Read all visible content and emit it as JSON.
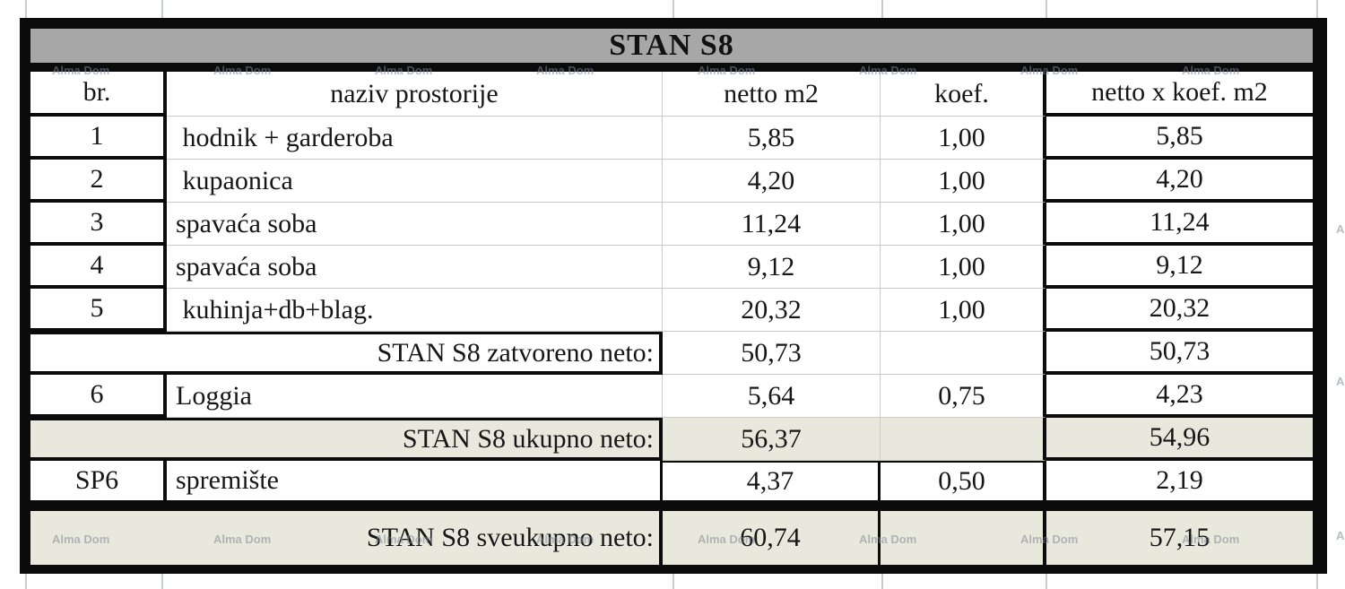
{
  "title": "STAN S8",
  "watermark": {
    "label": "Alma Dom"
  },
  "colors": {
    "title_bg": "#a7a7a7",
    "total_row_bg": "#e8e8dc",
    "border_black": "#0b0b0b",
    "grid_gray": "#c7cbd4",
    "watermark_gray": "#7f8897"
  },
  "table": {
    "headers": [
      "br.",
      "naziv prostorije",
      "netto m2",
      "koef.",
      "netto x koef. m2"
    ],
    "rows": [
      {
        "kind": "normal",
        "olive": false,
        "br": "1",
        "naziv": " hodnik + garderoba",
        "netto": "5,85",
        "koef": "1,00",
        "total": "5,85"
      },
      {
        "kind": "normal",
        "olive": false,
        "br": "2",
        "naziv": " kupaonica",
        "netto": "4,20",
        "koef": "1,00",
        "total": "4,20"
      },
      {
        "kind": "normal",
        "olive": false,
        "br": "3",
        "naziv": "spavaća soba",
        "netto": "11,24",
        "koef": "1,00",
        "total": "11,24"
      },
      {
        "kind": "normal",
        "olive": false,
        "br": "4",
        "naziv": "spavaća soba",
        "netto": "9,12",
        "koef": "1,00",
        "total": "9,12"
      },
      {
        "kind": "normal",
        "olive": false,
        "br": "5",
        "naziv": " kuhinja+db+blag.",
        "netto": "20,32",
        "koef": "1,00",
        "total": "20,32"
      },
      {
        "kind": "subtotal",
        "olive": false,
        "label": "STAN S8 zatvoreno neto:",
        "netto": "50,73",
        "koef": "",
        "total": "50,73"
      },
      {
        "kind": "normal",
        "olive": false,
        "br": "6",
        "naziv": "Loggia",
        "netto": "5,64",
        "koef": "0,75",
        "total": "4,23"
      },
      {
        "kind": "subtotal",
        "olive": true,
        "label": "STAN S8 ukupno neto:",
        "netto": "56,37",
        "koef": "",
        "total": "54,96"
      },
      {
        "kind": "sp",
        "olive": false,
        "br": "SP6",
        "naziv": "spremište",
        "netto": "4,37",
        "koef": "0,50",
        "total": "2,19"
      },
      {
        "kind": "grand",
        "olive": true,
        "label": "STAN S8 sveukupno neto:",
        "netto": "60,74",
        "koef": "",
        "total": "57,15"
      }
    ]
  }
}
